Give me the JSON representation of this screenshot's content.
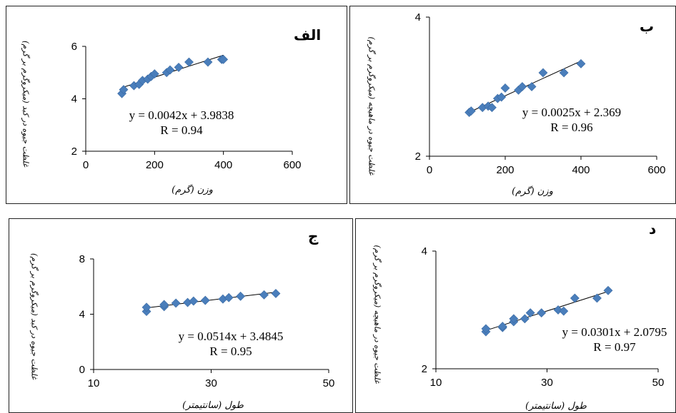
{
  "chart_data": [
    {
      "type": "scatter",
      "panel_label": "الف",
      "xlabel": "وزن (گرم)",
      "ylabel": "غلظت جیوه در کبد (میکروگرم بر گرم)",
      "x_ticks": [
        "0",
        "200",
        "400",
        "600"
      ],
      "y_ticks": [
        "2",
        "4",
        "6"
      ],
      "xlim": [
        0,
        600
      ],
      "ylim": [
        2,
        6
      ],
      "color": "#4a7ebb",
      "points": [
        [
          105,
          4.2
        ],
        [
          110,
          4.35
        ],
        [
          140,
          4.5
        ],
        [
          155,
          4.55
        ],
        [
          165,
          4.7
        ],
        [
          180,
          4.75
        ],
        [
          190,
          4.85
        ],
        [
          200,
          4.95
        ],
        [
          235,
          5.0
        ],
        [
          245,
          5.1
        ],
        [
          270,
          5.2
        ],
        [
          300,
          5.4
        ],
        [
          355,
          5.4
        ],
        [
          395,
          5.5
        ],
        [
          400,
          5.5
        ]
      ],
      "trendline": [
        [
          105,
          4.425
        ],
        [
          400,
          5.664
        ]
      ],
      "equation": "y = 0.0042x + 3.9838",
      "r_text": "R = 0.94"
    },
    {
      "type": "scatter",
      "panel_label": "ب",
      "xlabel": "وزن (گرم)",
      "ylabel": "غلظت جیوه در ماهیچه (میکروگرم بر گرم)",
      "x_ticks": [
        "0",
        "200",
        "400",
        "600"
      ],
      "y_ticks": [
        "2",
        "4"
      ],
      "xlim": [
        0,
        600
      ],
      "ylim": [
        2,
        4
      ],
      "color": "#4a7ebb",
      "points": [
        [
          105,
          2.63
        ],
        [
          110,
          2.65
        ],
        [
          140,
          2.7
        ],
        [
          155,
          2.72
        ],
        [
          165,
          2.7
        ],
        [
          180,
          2.83
        ],
        [
          190,
          2.85
        ],
        [
          200,
          2.98
        ],
        [
          235,
          2.95
        ],
        [
          245,
          3.0
        ],
        [
          270,
          3.0
        ],
        [
          300,
          3.2
        ],
        [
          355,
          3.2
        ],
        [
          400,
          3.33
        ]
      ],
      "trendline": [
        [
          105,
          2.632
        ],
        [
          400,
          3.369
        ]
      ],
      "equation": "y = 0.0025x + 2.369",
      "r_text": "R = 0.96"
    },
    {
      "type": "scatter",
      "panel_label": "ج",
      "xlabel": "طول (سانتیمتر)",
      "ylabel": "غلظت جیوه در کبد (میکروگرم بر گرم)",
      "x_ticks": [
        "10",
        "30",
        "50"
      ],
      "y_ticks": [
        "0",
        "4",
        "8"
      ],
      "xlim": [
        10,
        50
      ],
      "ylim": [
        0,
        8
      ],
      "color": "#4a7ebb",
      "points": [
        [
          19,
          4.2
        ],
        [
          19,
          4.5
        ],
        [
          22,
          4.55
        ],
        [
          22,
          4.7
        ],
        [
          24,
          4.8
        ],
        [
          26,
          4.85
        ],
        [
          27,
          4.95
        ],
        [
          29,
          5.0
        ],
        [
          32,
          5.1
        ],
        [
          33,
          5.2
        ],
        [
          35,
          5.3
        ],
        [
          39,
          5.4
        ],
        [
          41,
          5.5
        ]
      ],
      "trendline": [
        [
          19,
          4.461
        ],
        [
          41,
          5.592
        ]
      ],
      "equation": "y = 0.0514x + 3.4845",
      "r_text": "R = 0.95"
    },
    {
      "type": "scatter",
      "panel_label": "د",
      "xlabel": "طول (سانتیمتر)",
      "ylabel": "غلظت جیوه در ماهیچه (میکروگرم بر گرم)",
      "x_ticks": [
        "10",
        "30",
        "50"
      ],
      "y_ticks": [
        "2",
        "4"
      ],
      "xlim": [
        10,
        50
      ],
      "ylim": [
        2,
        4
      ],
      "color": "#4a7ebb",
      "points": [
        [
          19,
          2.63
        ],
        [
          19,
          2.68
        ],
        [
          22,
          2.7
        ],
        [
          22,
          2.72
        ],
        [
          24,
          2.8
        ],
        [
          24,
          2.85
        ],
        [
          26,
          2.85
        ],
        [
          27,
          2.95
        ],
        [
          29,
          2.95
        ],
        [
          32,
          3.0
        ],
        [
          33,
          2.98
        ],
        [
          35,
          3.2
        ],
        [
          39,
          3.2
        ],
        [
          41,
          3.33
        ]
      ],
      "trendline": [
        [
          19,
          2.651
        ],
        [
          41,
          3.314
        ]
      ],
      "equation": "y = 0.0301x + 2.0795",
      "r_text": "R = 0.97"
    }
  ]
}
